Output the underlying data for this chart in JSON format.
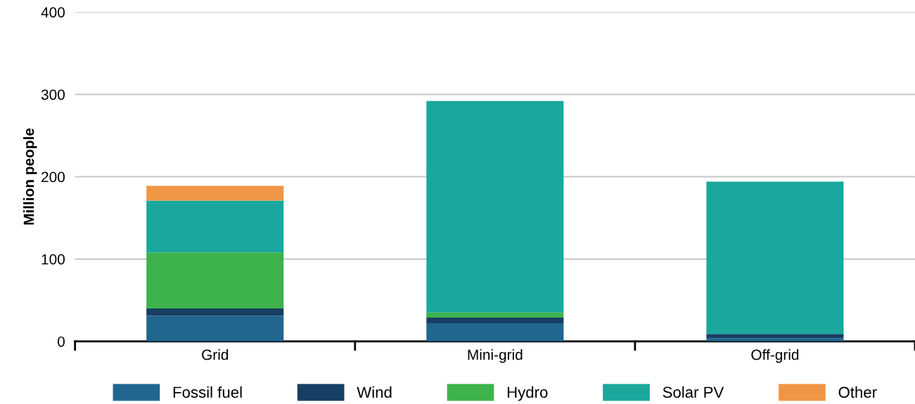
{
  "chart_data": {
    "type": "bar",
    "stacked": true,
    "ylabel": "Million people",
    "categories": [
      "Grid",
      "Mini-grid",
      "Off-grid"
    ],
    "series": [
      {
        "name": "Fossil fuel",
        "color": "#20668f",
        "values": [
          31,
          22,
          4
        ]
      },
      {
        "name": "Wind",
        "color": "#173f63",
        "values": [
          9,
          7,
          5
        ]
      },
      {
        "name": "Hydro",
        "color": "#3eb34b",
        "values": [
          68,
          6,
          0
        ]
      },
      {
        "name": "Solar PV",
        "color": "#1aa79d",
        "values": [
          63,
          257,
          185
        ]
      },
      {
        "name": "Other",
        "color": "#ef9645",
        "values": [
          18,
          0,
          0
        ]
      }
    ],
    "ylim": [
      0,
      400
    ],
    "yticks": [
      0,
      100,
      200,
      300,
      400
    ],
    "grid": "y",
    "legend": "bottom"
  }
}
